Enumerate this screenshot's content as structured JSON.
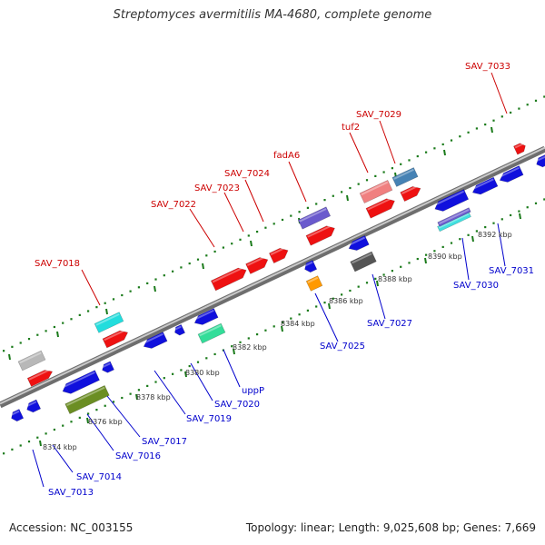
{
  "title": "Streptomyces avermitilis MA-4680, complete genome",
  "footer": {
    "accession": "Accession: NC_003155",
    "summary": "Topology: linear; Length: 9,025,608 bp; Genes: 7,669"
  },
  "colors": {
    "forward_label": "#cc0000",
    "reverse_label": "#0000cc",
    "backbone": "#8c8c8c",
    "tick_mark": "#1a7a1a"
  },
  "ticks": [
    "8374 kbp",
    "8376 kbp",
    "8378 kbp",
    "8380 kbp",
    "8382 kbp",
    "8384 kbp",
    "8386 kbp",
    "8388 kbp",
    "8390 kbp",
    "8392 kbp"
  ],
  "forward_labels": [
    "SAV_7018",
    "SAV_7022",
    "SAV_7023",
    "SAV_7024",
    "fadA6",
    "tuf2",
    "SAV_7029",
    "SAV_7033"
  ],
  "reverse_labels": [
    "SAV_7013",
    "SAV_7014",
    "SAV_7016",
    "SAV_7017",
    "SAV_7019",
    "SAV_7020",
    "uppP",
    "SAV_7025",
    "SAV_7027",
    "SAV_7030",
    "SAV_7031"
  ]
}
